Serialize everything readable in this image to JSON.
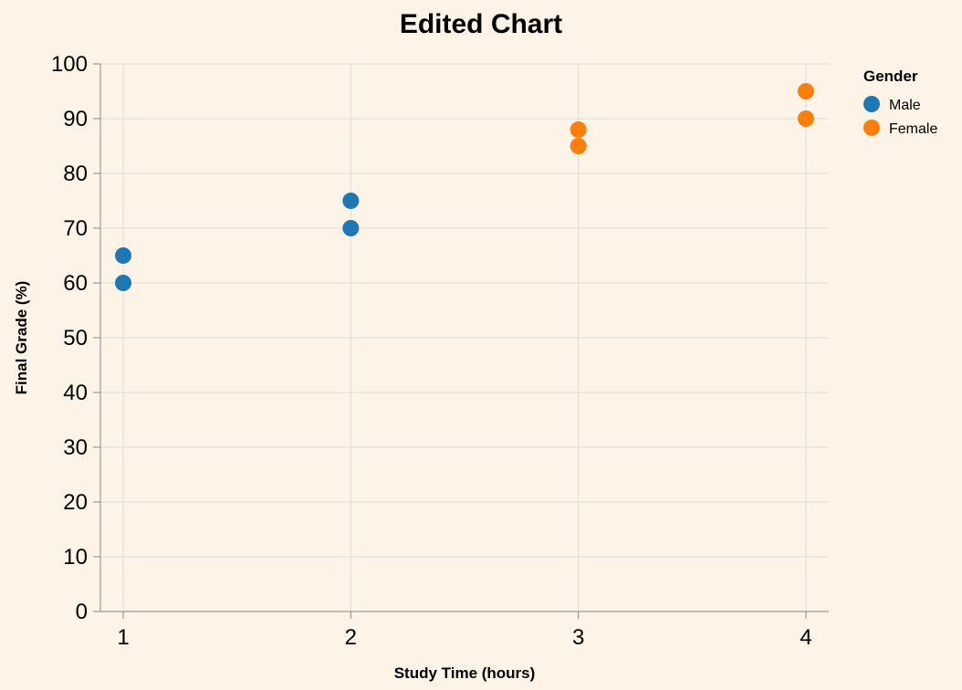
{
  "chart_data": {
    "type": "scatter",
    "title": "Edited Chart",
    "xlabel": "Study Time (hours)",
    "ylabel": "Final Grade (%)",
    "xlim": [
      1,
      4
    ],
    "ylim": [
      0,
      100
    ],
    "x_ticks": [
      1,
      2,
      3,
      4
    ],
    "y_ticks": [
      0,
      10,
      20,
      30,
      40,
      50,
      60,
      70,
      80,
      90,
      100
    ],
    "grid": true,
    "legend": {
      "title": "Gender",
      "placement": "right",
      "entries": [
        {
          "name": "Male",
          "color": "#1f77b4"
        },
        {
          "name": "Female",
          "color": "#ff7f0e"
        }
      ]
    },
    "series": [
      {
        "name": "Male",
        "color": "#1f77b4",
        "points": [
          {
            "x": 1,
            "y": 60
          },
          {
            "x": 1,
            "y": 65
          },
          {
            "x": 2,
            "y": 70
          },
          {
            "x": 2,
            "y": 75
          }
        ]
      },
      {
        "name": "Female",
        "color": "#ff7f0e",
        "points": [
          {
            "x": 3,
            "y": 85
          },
          {
            "x": 3,
            "y": 88
          },
          {
            "x": 4,
            "y": 90
          },
          {
            "x": 4,
            "y": 95
          }
        ]
      }
    ]
  }
}
